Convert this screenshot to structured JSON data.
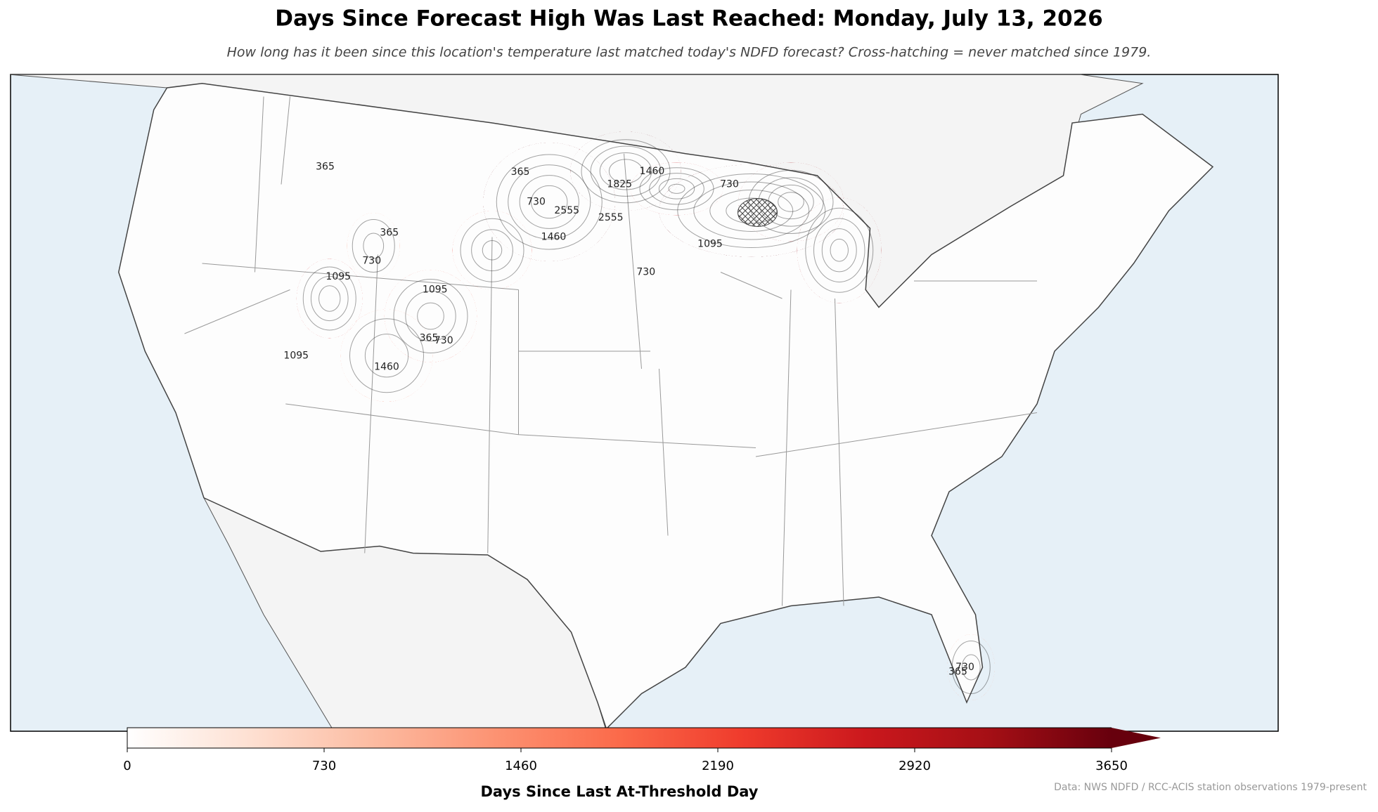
{
  "title": "Days Since Forecast High Was Last Reached: Monday, July 13, 2026",
  "subtitle": "How long has it been since this location's temperature last matched today's NDFD forecast? Cross-hatching = never matched since 1979.",
  "colorbar": {
    "label": "Days Since Last At-Threshold Day",
    "lim": [
      0,
      3650
    ],
    "ticks": [
      0,
      730,
      1460,
      2190,
      2920,
      3650
    ],
    "extend": "max",
    "colors": [
      "#ffffff",
      "#fee0d2",
      "#fcbba1",
      "#fc9272",
      "#fb6a4a",
      "#ef3b2c",
      "#cb181d",
      "#a50f15",
      "#67000d"
    ]
  },
  "contour_labels": [
    365,
    730,
    1460,
    1825,
    2555,
    1460,
    730,
    1095,
    365,
    730,
    365,
    1095,
    730,
    1095,
    365,
    730,
    1095,
    1460,
    2555,
    730,
    365
  ],
  "source": "Data: NWS NDFD / RCC-ACIS station observations 1979-present"
}
